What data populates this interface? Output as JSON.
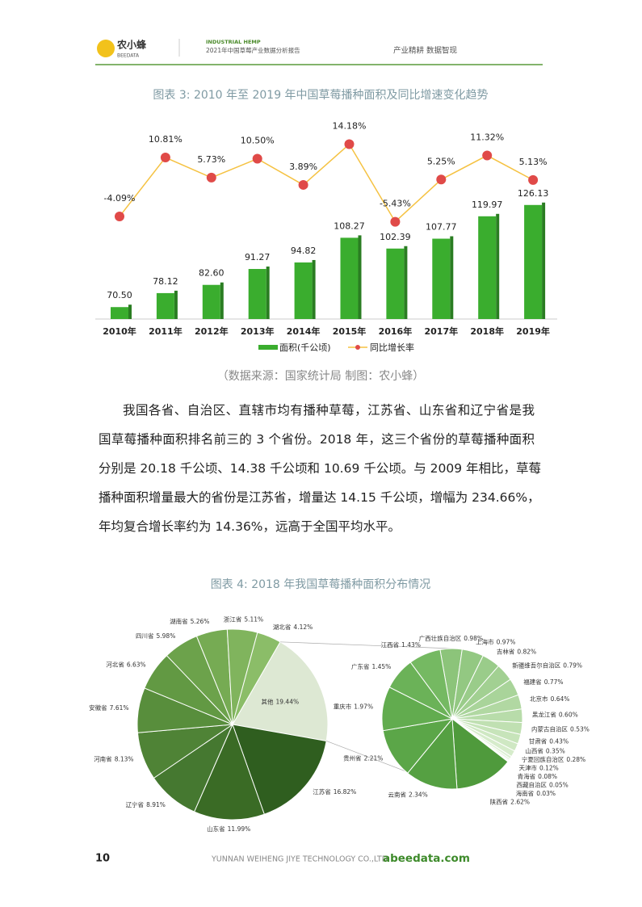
{
  "header": {
    "logo": "农小蜂",
    "logo_sub": "BEEDATA",
    "tag": "INDUSTRIAL HEMP",
    "report": "2021年中国草莓产业数据分析报告",
    "slogan": "产业精耕  数据智现"
  },
  "chart_data": [
    {
      "type": "bar_line",
      "title": "图表 3:   2010 年至 2019 年中国草莓播种面积及同比增速变化趋势",
      "categories": [
        "2010年",
        "2011年",
        "2012年",
        "2013年",
        "2014年",
        "2015年",
        "2016年",
        "2017年",
        "2018年",
        "2019年"
      ],
      "ylim": [
        64,
        130
      ],
      "y2lim": [
        -30,
        20
      ],
      "series": [
        {
          "name": "面积(千公顷)",
          "color": "#3aad2e",
          "values": [
            70.5,
            78.12,
            82.6,
            91.27,
            94.82,
            108.27,
            102.39,
            107.77,
            119.97,
            126.13
          ],
          "value_labels": [
            "70.50",
            "78.12",
            "82.60",
            "91.27",
            "94.82",
            "108.27",
            "102.39",
            "107.77",
            "119.97",
            "126.13"
          ]
        },
        {
          "name": "同比增长率",
          "color": "#f5c242",
          "marker_color": "#e04a48",
          "axis": "y2",
          "values": [
            -4.09,
            10.81,
            5.73,
            10.5,
            3.89,
            14.18,
            -5.43,
            5.25,
            11.32,
            5.13
          ],
          "value_labels": [
            "-4.09%",
            "10.81%",
            "5.73%",
            "10.50%",
            "3.89%",
            "14.18%",
            "-5.43%",
            "5.25%",
            "11.32%",
            "5.13%"
          ]
        }
      ]
    },
    {
      "type": "pie_of_pie",
      "title": "图表 4:   2018 年我国草莓播种面积分布情况",
      "categories": [
        "其他",
        "江苏省",
        "山东省",
        "辽宁省",
        "河南省",
        "安徽省",
        "河北省",
        "四川省",
        "湖南省",
        "浙江省",
        "湖北省"
      ],
      "values": [
        19.44,
        16.82,
        11.99,
        8.91,
        8.13,
        7.61,
        6.63,
        5.98,
        5.26,
        5.11,
        4.12
      ],
      "value_labels": [
        "19.44%",
        "16.82%",
        "11.99%",
        "8.91%",
        "8.13%",
        "7.61%",
        "6.63%",
        "5.98%",
        "5.26%",
        "5.11%",
        "4.12%"
      ],
      "colors": [
        "#dde8d3",
        "#2f5e1f",
        "#3a6b25",
        "#457830",
        "#4f8336",
        "#588e3c",
        "#629943",
        "#6ca24b",
        "#76ab53",
        "#80b45d",
        "#8bbd68"
      ],
      "sub_categories": [
        "广西壮族自治区",
        "上海市",
        "吉林省",
        "新疆维吾尔自治区",
        "福建省",
        "北京市",
        "黑龙江省",
        "内蒙古自治区",
        "甘肃省",
        "山西省",
        "宁夏回族自治区",
        "天津市",
        "青海省",
        "西藏自治区",
        "海南省",
        "陕西省",
        "云南省",
        "贵州省",
        "重庆市",
        "广东省",
        "江西省"
      ],
      "sub_values": [
        0.98,
        0.97,
        0.82,
        0.79,
        0.77,
        0.64,
        0.6,
        0.53,
        0.43,
        0.35,
        0.28,
        0.12,
        0.08,
        0.05,
        0.03,
        2.62,
        2.34,
        2.21,
        1.97,
        1.45,
        1.43
      ],
      "sub_value_labels": [
        "0.98%",
        "0.97%",
        "0.82%",
        "0.79%",
        "0.77%",
        "0.64%",
        "0.60%",
        "0.53%",
        "0.43%",
        "0.35%",
        "0.28%",
        "0.12%",
        "0.08%",
        "0.05%",
        "0.03%",
        "2.62%",
        "2.34%",
        "2.21%",
        "1.97%",
        "1.45%",
        "1.43%"
      ],
      "sub_colors": [
        "#8cc47a",
        "#93c882",
        "#9acc8a",
        "#a2d092",
        "#a9d49a",
        "#b1d8a2",
        "#b8dcaa",
        "#c0e0b2",
        "#c7e4ba",
        "#cfe8c3",
        "#d6eccb",
        "#ddf0d3",
        "#e4f3db",
        "#eaf6e3",
        "#f0f9ec",
        "#4f9a3c",
        "#55a042",
        "#5ba648",
        "#62ac4f",
        "#6bb258",
        "#75b962"
      ]
    }
  ],
  "source": "（数据来源：国家统计局  制图：农小蜂）",
  "body": [
    "我国各省、自治区、直辖市均有播种草莓，江苏省、山东省和辽宁省是我",
    "国草莓播种面积排名前三的 3 个省份。2018 年，这三个省份的草莓播种面积",
    "分别是 20.18 千公顷、14.38 千公顷和 10.69 千公顷。与 2009 年相比，草莓",
    "播种面积增量最大的省份是江苏省，增量达 14.15 千公顷，增幅为 234.66%，",
    "年均复合增长率约为 14.36%，远高于全国平均水平。"
  ],
  "footer": {
    "page": "10",
    "company": "YUNNAN WEIHENG JIYE TECHNOLOGY CO.,LTD.",
    "site": "abeedata.com"
  }
}
